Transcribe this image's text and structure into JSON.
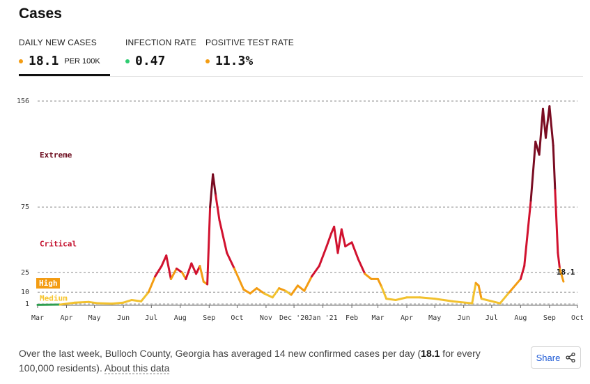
{
  "title": "Cases",
  "tabs": [
    {
      "label": "DAILY NEW CASES",
      "value": "18.1",
      "unit": "PER 100K",
      "dot_color": "#f39c12",
      "active": true
    },
    {
      "label": "INFECTION RATE",
      "value": "0.47",
      "unit": "",
      "dot_color": "#2ecc71",
      "active": false
    },
    {
      "label": "POSITIVE TEST RATE",
      "value": "11.3%",
      "unit": "",
      "dot_color": "#f39c12",
      "active": false
    }
  ],
  "footer": {
    "text_before": "Over the last week, Bulloch County, Georgia has averaged 14 new confirmed cases per day (",
    "highlight": "18.1",
    "text_after": " for every 100,000 residents). ",
    "about_link": "About this data"
  },
  "share": {
    "label": "Share",
    "icon": "share-icon"
  },
  "chart_data": {
    "type": "line",
    "title": "",
    "xlabel": "",
    "ylabel": "",
    "ylim": [
      0,
      156
    ],
    "y_ticks": [
      1,
      10,
      25,
      75,
      156
    ],
    "grid": "dashed horizontal at thresholds",
    "x_tick_labels": [
      "Mar",
      "Apr",
      "May",
      "Jun",
      "Jul",
      "Aug",
      "Sep",
      "Oct",
      "Nov",
      "Dec '20",
      "Jan '21",
      "Feb",
      "Mar",
      "Apr",
      "May",
      "Jun",
      "Jul",
      "Aug",
      "Sep",
      "Oct"
    ],
    "x_tick_dates": [
      "2020-03-01",
      "2020-04-01",
      "2020-05-01",
      "2020-06-01",
      "2020-07-01",
      "2020-08-01",
      "2020-09-01",
      "2020-10-01",
      "2020-11-01",
      "2020-12-01",
      "2021-01-01",
      "2021-02-01",
      "2021-03-01",
      "2021-04-01",
      "2021-05-01",
      "2021-06-01",
      "2021-07-01",
      "2021-08-01",
      "2021-09-01",
      "2021-10-01"
    ],
    "risk_levels": [
      {
        "name": "Extreme",
        "color": "#6b0a1c",
        "value_text": "156"
      },
      {
        "name": "Critical",
        "color": "#c4122f",
        "value_text": "75"
      },
      {
        "name": "High",
        "color": "#f39c12",
        "value_text": "25"
      },
      {
        "name": "Medium",
        "color": "#f7c52d",
        "value_text": "10"
      }
    ],
    "color_thresholds": [
      {
        "min": 0,
        "color": "#2e9e4f"
      },
      {
        "min": 1,
        "color": "#f2c12e"
      },
      {
        "min": 10,
        "color": "#f39c12"
      },
      {
        "min": 25,
        "color": "#d1122f"
      },
      {
        "min": 75,
        "color": "#7a0c22"
      }
    ],
    "last_value_label": "18.1",
    "points": [
      [
        "2020-03-01",
        0.3
      ],
      [
        "2020-03-25",
        0.5
      ],
      [
        "2020-04-10",
        2
      ],
      [
        "2020-04-25",
        2.5
      ],
      [
        "2020-05-05",
        1.5
      ],
      [
        "2020-05-20",
        1.2
      ],
      [
        "2020-06-01",
        2
      ],
      [
        "2020-06-10",
        4
      ],
      [
        "2020-06-20",
        3
      ],
      [
        "2020-06-28",
        10
      ],
      [
        "2020-07-05",
        22
      ],
      [
        "2020-07-12",
        30
      ],
      [
        "2020-07-17",
        38
      ],
      [
        "2020-07-22",
        20
      ],
      [
        "2020-07-28",
        28
      ],
      [
        "2020-08-03",
        25
      ],
      [
        "2020-08-07",
        20
      ],
      [
        "2020-08-13",
        32
      ],
      [
        "2020-08-18",
        24
      ],
      [
        "2020-08-22",
        30
      ],
      [
        "2020-08-26",
        18
      ],
      [
        "2020-08-30",
        16
      ],
      [
        "2020-09-02",
        75
      ],
      [
        "2020-09-05",
        100
      ],
      [
        "2020-09-08",
        84
      ],
      [
        "2020-09-12",
        65
      ],
      [
        "2020-09-20",
        40
      ],
      [
        "2020-09-28",
        28
      ],
      [
        "2020-10-03",
        20
      ],
      [
        "2020-10-08",
        12
      ],
      [
        "2020-10-15",
        9
      ],
      [
        "2020-10-22",
        13
      ],
      [
        "2020-10-30",
        9
      ],
      [
        "2020-11-08",
        6
      ],
      [
        "2020-11-15",
        13
      ],
      [
        "2020-11-22",
        11
      ],
      [
        "2020-11-28",
        8
      ],
      [
        "2020-12-05",
        15
      ],
      [
        "2020-12-12",
        11
      ],
      [
        "2020-12-20",
        22
      ],
      [
        "2020-12-28",
        30
      ],
      [
        "2021-01-05",
        45
      ],
      [
        "2021-01-10",
        55
      ],
      [
        "2021-01-13",
        60
      ],
      [
        "2021-01-17",
        40
      ],
      [
        "2021-01-21",
        58
      ],
      [
        "2021-01-25",
        45
      ],
      [
        "2021-02-01",
        48
      ],
      [
        "2021-02-08",
        35
      ],
      [
        "2021-02-15",
        24
      ],
      [
        "2021-02-22",
        20
      ],
      [
        "2021-03-01",
        20
      ],
      [
        "2021-03-05",
        14
      ],
      [
        "2021-03-10",
        5
      ],
      [
        "2021-03-20",
        4
      ],
      [
        "2021-04-01",
        6
      ],
      [
        "2021-04-15",
        6
      ],
      [
        "2021-05-01",
        5
      ],
      [
        "2021-05-20",
        3
      ],
      [
        "2021-06-10",
        1.5
      ],
      [
        "2021-06-14",
        17
      ],
      [
        "2021-06-17",
        15
      ],
      [
        "2021-06-20",
        5
      ],
      [
        "2021-07-10",
        1.5
      ],
      [
        "2021-07-20",
        10
      ],
      [
        "2021-08-01",
        20
      ],
      [
        "2021-08-05",
        30
      ],
      [
        "2021-08-12",
        80
      ],
      [
        "2021-08-17",
        125
      ],
      [
        "2021-08-21",
        115
      ],
      [
        "2021-08-25",
        150
      ],
      [
        "2021-08-28",
        128
      ],
      [
        "2021-09-01",
        152
      ],
      [
        "2021-09-05",
        122
      ],
      [
        "2021-09-07",
        88
      ],
      [
        "2021-09-10",
        40
      ],
      [
        "2021-09-12",
        28
      ],
      [
        "2021-09-16",
        18.1
      ]
    ]
  }
}
